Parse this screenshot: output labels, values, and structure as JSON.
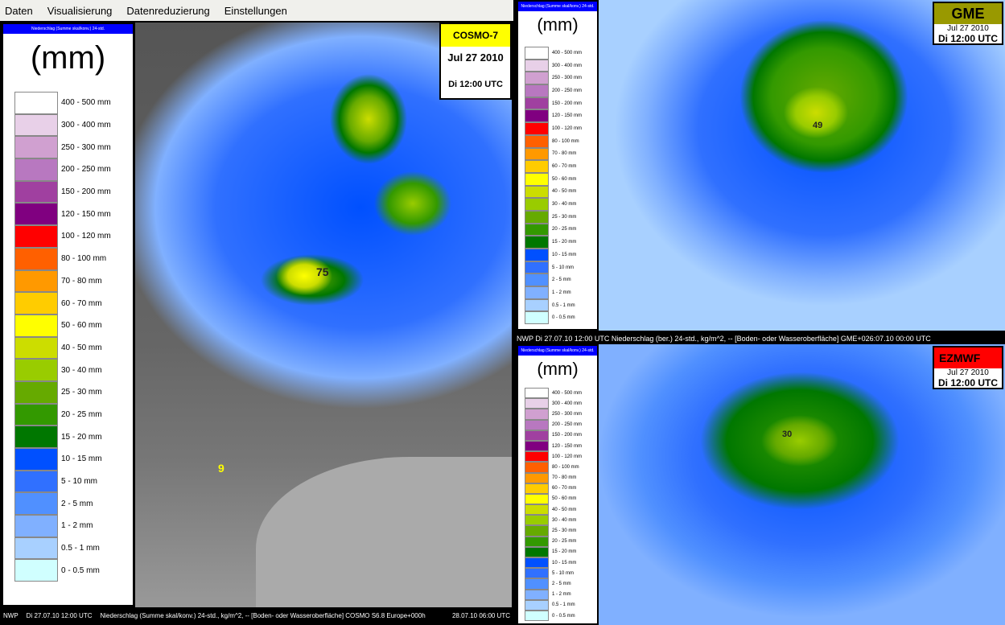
{
  "menu": [
    "Daten",
    "Visualisierung",
    "Datenreduzierung",
    "Einstellungen"
  ],
  "legend": {
    "header": "Niederschlag (Summe skal/konv.) 24-std.",
    "unit": "(mm)",
    "items": [
      {
        "label": "400 - 500 mm",
        "color": "#ffffff"
      },
      {
        "label": "300 - 400 mm",
        "color": "#e8d0e8"
      },
      {
        "label": "250 - 300 mm",
        "color": "#d0a0d0"
      },
      {
        "label": "200 - 250 mm",
        "color": "#b878c0"
      },
      {
        "label": "150 - 200 mm",
        "color": "#a040a0"
      },
      {
        "label": "120 - 150 mm",
        "color": "#800080"
      },
      {
        "label": "100 - 120 mm",
        "color": "#ff0000"
      },
      {
        "label": "80 - 100 mm",
        "color": "#ff6000"
      },
      {
        "label": "70 - 80 mm",
        "color": "#ff9900"
      },
      {
        "label": "60 - 70 mm",
        "color": "#ffcc00"
      },
      {
        "label": "50 - 60 mm",
        "color": "#ffff00"
      },
      {
        "label": "40 - 50 mm",
        "color": "#ccdd00"
      },
      {
        "label": "30 - 40 mm",
        "color": "#99cc00"
      },
      {
        "label": "25 - 30 mm",
        "color": "#66aa00"
      },
      {
        "label": "20 - 25 mm",
        "color": "#339900"
      },
      {
        "label": "15 - 20 mm",
        "color": "#007700"
      },
      {
        "label": "10 - 15 mm",
        "color": "#0050ff"
      },
      {
        "label": "5 - 10 mm",
        "color": "#3070ff"
      },
      {
        "label": "2 - 5 mm",
        "color": "#5090ff"
      },
      {
        "label": "1 - 2 mm",
        "color": "#80b0ff"
      },
      {
        "label": "0.5 - 1 mm",
        "color": "#a8d0ff"
      },
      {
        "label": "0 - 0.5 mm",
        "color": "#d0ffff"
      }
    ]
  },
  "cosmo": {
    "model": "COSMO-7",
    "date": "Jul 27 2010",
    "time": "Di 12:00 UTC",
    "model_color": "#ffff00",
    "values": [
      "75",
      "9"
    ],
    "status": {
      "a": "NWP",
      "b": "Di 27.07.10 12:00 UTC",
      "c": "Niederschlag (Summe skal/konv.) 24-std., kg/m^2, -- [Boden- oder Wasseroberfläche] COSMO S6.8 Europe+000h",
      "d": "28.07.10 06:00 UTC"
    }
  },
  "gme": {
    "model": "GME",
    "date": "Jul 27 2010",
    "time": "Di 12:00 UTC",
    "model_color": "#999900",
    "values": [
      "49"
    ],
    "status": "NWP  Di 27.07.10 12:00  UTC Niederschlag (ber.) 24-std., kg/m^2, -- [Boden- oder Wasseroberfläche]  GME+026:07.10 00:00  UTC"
  },
  "ezmwf": {
    "model": "EZMWF",
    "date": "Jul 27 2010",
    "time": "Di 12:00 UTC",
    "model_color": "#ff0000",
    "values": [
      "30"
    ]
  }
}
